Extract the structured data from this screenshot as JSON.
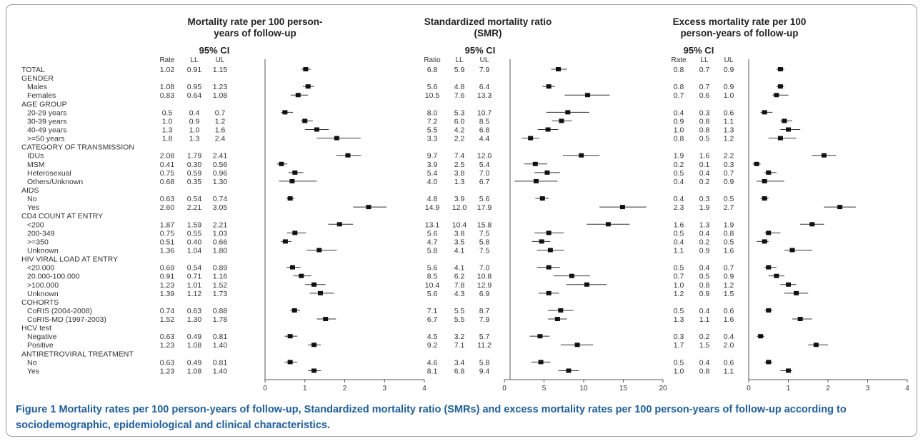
{
  "figure": {
    "caption_label": "Figure 1",
    "caption_text": "Mortality rates per 100 person-years of follow-up, Standardized mortality ratio (SMRs) and excess mortality rates per 100 person-years of follow-up according to sociodemographic, epidemiological and clinical characteristics."
  },
  "chart_data": [
    {
      "type": "forest",
      "title": "Mortality rate per 100 person-years of follow-up",
      "ci_header": "95% CI",
      "col_headers": [
        "Rate",
        "LL",
        "UL"
      ],
      "xlim": [
        0,
        4
      ],
      "xticks": [
        0,
        1,
        2,
        3,
        4
      ],
      "rows": [
        {
          "label": "TOTAL",
          "kind": "item",
          "est": "1.02",
          "ll": "0.91",
          "ul": "1.15"
        },
        {
          "label": "GENDER",
          "kind": "group"
        },
        {
          "label": "Males",
          "kind": "sub",
          "est": "1.08",
          "ll": "0.95",
          "ul": "1.23"
        },
        {
          "label": "Females",
          "kind": "sub",
          "est": "0.83",
          "ll": "0.64",
          "ul": "1.08"
        },
        {
          "label": "AGE GROUP",
          "kind": "group"
        },
        {
          "label": "20-29 years",
          "kind": "sub",
          "est": "0.5",
          "ll": "0.4",
          "ul": "0.7"
        },
        {
          "label": "30-39 years",
          "kind": "sub",
          "est": "1.0",
          "ll": "0.9",
          "ul": "1.2"
        },
        {
          "label": "40-49 years",
          "kind": "sub",
          "est": "1.3",
          "ll": "1.0",
          "ul": "1.6"
        },
        {
          "label": ">=50 years",
          "kind": "sub",
          "est": "1.8",
          "ll": "1.3",
          "ul": "2.4"
        },
        {
          "label": "CATEGORY OF TRANSMISSION",
          "kind": "group"
        },
        {
          "label": "IDUs",
          "kind": "sub",
          "est": "2.08",
          "ll": "1.79",
          "ul": "2.41"
        },
        {
          "label": "MSM",
          "kind": "sub",
          "est": "0.41",
          "ll": "0.30",
          "ul": "0.56"
        },
        {
          "label": "Heterosexual",
          "kind": "sub",
          "est": "0.75",
          "ll": "0.59",
          "ul": "0.96"
        },
        {
          "label": "Others/Unknown",
          "kind": "sub",
          "est": "0.68",
          "ll": "0.35",
          "ul": "1.30"
        },
        {
          "label": "AIDS",
          "kind": "group"
        },
        {
          "label": "No",
          "kind": "sub",
          "est": "0.63",
          "ll": "0.54",
          "ul": "0.74"
        },
        {
          "label": "Yes",
          "kind": "sub",
          "est": "2.60",
          "ll": "2.21",
          "ul": "3.05"
        },
        {
          "label": "CD4 COUNT AT ENTRY",
          "kind": "group"
        },
        {
          "label": "<200",
          "kind": "sub",
          "est": "1.87",
          "ll": "1.59",
          "ul": "2.21"
        },
        {
          "label": "200-349",
          "kind": "sub",
          "est": "0.75",
          "ll": "0.55",
          "ul": "1.03"
        },
        {
          "label": ">=350",
          "kind": "sub",
          "est": "0.51",
          "ll": "0.40",
          "ul": "0.66"
        },
        {
          "label": "Unknown",
          "kind": "sub",
          "est": "1.36",
          "ll": "1.04",
          "ul": "1.80"
        },
        {
          "label": "HIV VIRAL LOAD AT ENTRY",
          "kind": "group"
        },
        {
          "label": "<20.000",
          "kind": "sub",
          "est": "0.69",
          "ll": "0.54",
          "ul": "0.89"
        },
        {
          "label": "20.000-100.000",
          "kind": "sub",
          "est": "0.91",
          "ll": "0.71",
          "ul": "1.16"
        },
        {
          "label": ">100.000",
          "kind": "sub",
          "est": "1.23",
          "ll": "1.01",
          "ul": "1.52"
        },
        {
          "label": "Unknown",
          "kind": "sub",
          "est": "1.39",
          "ll": "1.12",
          "ul": "1.73"
        },
        {
          "label": "COHORTS",
          "kind": "group"
        },
        {
          "label": "CoRIS (2004-2008)",
          "kind": "sub",
          "est": "0.74",
          "ll": "0.63",
          "ul": "0.88"
        },
        {
          "label": "CoRIS-MD (1997-2003)",
          "kind": "sub",
          "est": "1.52",
          "ll": "1.30",
          "ul": "1.78"
        },
        {
          "label": "HCV test",
          "kind": "group"
        },
        {
          "label": "Negative",
          "kind": "sub",
          "est": "0.63",
          "ll": "0.49",
          "ul": "0.81"
        },
        {
          "label": "Positive",
          "kind": "sub",
          "est": "1.23",
          "ll": "1.08",
          "ul": "1.40"
        },
        {
          "label": "ANTIRETROVIRAL TREATMENT",
          "kind": "group"
        },
        {
          "label": "No",
          "kind": "sub",
          "est": "0.63",
          "ll": "0.49",
          "ul": "0.81"
        },
        {
          "label": "Yes",
          "kind": "sub",
          "est": "1.23",
          "ll": "1.08",
          "ul": "1.40"
        }
      ]
    },
    {
      "type": "forest",
      "title": "Standardized mortality ratio (SMR)",
      "ci_header": "95% CI",
      "col_headers": [
        "Ratio",
        "LL",
        "UL"
      ],
      "xlim": [
        0,
        20
      ],
      "xticks": [
        0,
        5,
        10,
        15,
        20
      ],
      "rows": [
        {
          "est": "6.8",
          "ll": "5.9",
          "ul": "7.9"
        },
        {},
        {
          "est": "5.6",
          "ll": "4.8",
          "ul": "6.4"
        },
        {
          "est": "10.5",
          "ll": "7.6",
          "ul": "13.3"
        },
        {},
        {
          "est": "8.0",
          "ll": "5.3",
          "ul": "10.7"
        },
        {
          "est": "7.2",
          "ll": "6.0",
          "ul": "8.5"
        },
        {
          "est": "5.5",
          "ll": "4.2",
          "ul": "6.8"
        },
        {
          "est": "3.3",
          "ll": "2.2",
          "ul": "4.4"
        },
        {},
        {
          "est": "9.7",
          "ll": "7.4",
          "ul": "12.0"
        },
        {
          "est": "3.9",
          "ll": "2.5",
          "ul": "5.4"
        },
        {
          "est": "5.4",
          "ll": "3.8",
          "ul": "7.0"
        },
        {
          "est": "4.0",
          "ll": "1.3",
          "ul": "6.7"
        },
        {},
        {
          "est": "4.8",
          "ll": "3.9",
          "ul": "5.6"
        },
        {
          "est": "14.9",
          "ll": "12.0",
          "ul": "17.9"
        },
        {},
        {
          "est": "13.1",
          "ll": "10.4",
          "ul": "15.8"
        },
        {
          "est": "5.6",
          "ll": "3.8",
          "ul": "7.5"
        },
        {
          "est": "4.7",
          "ll": "3.5",
          "ul": "5.8"
        },
        {
          "est": "5.8",
          "ll": "4.1",
          "ul": "7.5"
        },
        {},
        {
          "est": "5.6",
          "ll": "4.1",
          "ul": "7.0"
        },
        {
          "est": "8.5",
          "ll": "6.2",
          "ul": "10.8"
        },
        {
          "est": "10.4",
          "ll": "7.8",
          "ul": "12.9"
        },
        {
          "est": "5.6",
          "ll": "4.3",
          "ul": "6.9"
        },
        {},
        {
          "est": "7.1",
          "ll": "5.5",
          "ul": "8.7"
        },
        {
          "est": "6.7",
          "ll": "5.5",
          "ul": "7.9"
        },
        {},
        {
          "est": "4.5",
          "ll": "3.2",
          "ul": "5.7"
        },
        {
          "est": "9.2",
          "ll": "7.1",
          "ul": "11.2"
        },
        {},
        {
          "est": "4.6",
          "ll": "3.4",
          "ul": "5.8"
        },
        {
          "est": "8.1",
          "ll": "6.8",
          "ul": "9.4"
        }
      ]
    },
    {
      "type": "forest",
      "title": "Excess mortality rate per 100 person-years of follow-up",
      "ci_header": "95% CI",
      "col_headers": [
        "Rate",
        "LL",
        "UL"
      ],
      "xlim": [
        0,
        4
      ],
      "xticks": [
        0,
        1,
        2,
        3,
        4
      ],
      "rows": [
        {
          "est": "0.8",
          "ll": "0.7",
          "ul": "0.9"
        },
        {},
        {
          "est": "0.8",
          "ll": "0.7",
          "ul": "0.9"
        },
        {
          "est": "0.7",
          "ll": "0.6",
          "ul": "1.0"
        },
        {},
        {
          "est": "0.4",
          "ll": "0.3",
          "ul": "0.6"
        },
        {
          "est": "0.9",
          "ll": "0.8",
          "ul": "1.1"
        },
        {
          "est": "1.0",
          "ll": "0.8",
          "ul": "1.3"
        },
        {
          "est": "0.8",
          "ll": "0.5",
          "ul": "1.2"
        },
        {},
        {
          "est": "1.9",
          "ll": "1.6",
          "ul": "2.2"
        },
        {
          "est": "0.2",
          "ll": "0.1",
          "ul": "0.3"
        },
        {
          "est": "0.5",
          "ll": "0.4",
          "ul": "0.7"
        },
        {
          "est": "0.4",
          "ll": "0.2",
          "ul": "0.9"
        },
        {},
        {
          "est": "0.4",
          "ll": "0.3",
          "ul": "0.5"
        },
        {
          "est": "2.3",
          "ll": "1.9",
          "ul": "2.7"
        },
        {},
        {
          "est": "1.6",
          "ll": "1.3",
          "ul": "1.9"
        },
        {
          "est": "0.5",
          "ll": "0.4",
          "ul": "0.8"
        },
        {
          "est": "0.4",
          "ll": "0.2",
          "ul": "0.5"
        },
        {
          "est": "1.1",
          "ll": "0.9",
          "ul": "1.6"
        },
        {},
        {
          "est": "0.5",
          "ll": "0.4",
          "ul": "0.7"
        },
        {
          "est": "0.7",
          "ll": "0.5",
          "ul": "0.9"
        },
        {
          "est": "1.0",
          "ll": "0.8",
          "ul": "1.2"
        },
        {
          "est": "1.2",
          "ll": "0.9",
          "ul": "1.5"
        },
        {},
        {
          "est": "0.5",
          "ll": "0.4",
          "ul": "0.6"
        },
        {
          "est": "1.3",
          "ll": "1.1",
          "ul": "1.6"
        },
        {},
        {
          "est": "0.3",
          "ll": "0.2",
          "ul": "0.4"
        },
        {
          "est": "1.7",
          "ll": "1.5",
          "ul": "2.0"
        },
        {},
        {
          "est": "0.5",
          "ll": "0.4",
          "ul": "0.6"
        },
        {
          "est": "1.0",
          "ll": "0.8",
          "ul": "1.1"
        }
      ]
    }
  ]
}
